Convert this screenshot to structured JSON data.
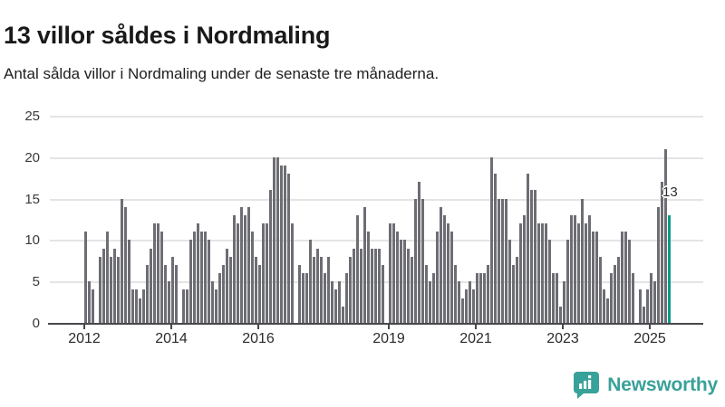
{
  "header": {
    "title": "13 villor såldes i Nordmaling",
    "subtitle": "Antal sålda villor i Nordmaling under de senaste tre månaderna."
  },
  "chart": {
    "y_ticks": [
      0,
      5,
      10,
      15,
      20,
      25
    ],
    "x_tick_years": [
      2012,
      2014,
      2016,
      2019,
      2021,
      2023,
      2025
    ],
    "annotation_label": "13",
    "colors": {
      "bar": "#6d6d74",
      "highlight": "#0b9a8d",
      "gridline": "#e4e4e4",
      "axis": "#47474c",
      "text": "#3a3a3a"
    }
  },
  "chart_data": {
    "type": "bar",
    "title": "13 villor såldes i Nordmaling",
    "subtitle": "Antal sålda villor i Nordmaling under de senaste tre månaderna.",
    "unit": "sålda villor (rullande tre månader)",
    "frequency": "monthly",
    "x_start": "2012-01",
    "x_end": "2025-06",
    "ylim": [
      0,
      25
    ],
    "grid": true,
    "highlight_last": true,
    "last_value": 13,
    "values": [
      11,
      5,
      4,
      0,
      8,
      9,
      11,
      8,
      9,
      8,
      15,
      14,
      10,
      4,
      4,
      3,
      4,
      7,
      9,
      12,
      12,
      11,
      7,
      5,
      8,
      7,
      0,
      4,
      4,
      10,
      11,
      12,
      11,
      11,
      10,
      5,
      4,
      6,
      7,
      9,
      8,
      13,
      12,
      14,
      13,
      14,
      11,
      8,
      7,
      12,
      12,
      16,
      20,
      20,
      19,
      19,
      18,
      12,
      0,
      7,
      6,
      6,
      10,
      8,
      9,
      8,
      6,
      8,
      5,
      4,
      5,
      2,
      6,
      8,
      9,
      13,
      9,
      14,
      11,
      9,
      9,
      9,
      7,
      0,
      12,
      12,
      11,
      10,
      10,
      9,
      8,
      15,
      17,
      15,
      7,
      5,
      6,
      11,
      14,
      13,
      12,
      11,
      7,
      5,
      3,
      4,
      5,
      4,
      6,
      6,
      6,
      7,
      20,
      18,
      15,
      15,
      15,
      10,
      7,
      8,
      12,
      13,
      18,
      16,
      16,
      12,
      12,
      12,
      10,
      6,
      6,
      2,
      5,
      10,
      13,
      13,
      12,
      15,
      12,
      13,
      11,
      11,
      8,
      4,
      3,
      6,
      7,
      8,
      11,
      11,
      10,
      6,
      0,
      4,
      2,
      4,
      6,
      5,
      14,
      17,
      21,
      13
    ]
  },
  "footer": {
    "brand": "Newsworthy",
    "logo_icon": "bar-chart-speech-bubble-icon",
    "brand_color": "#38a199"
  }
}
